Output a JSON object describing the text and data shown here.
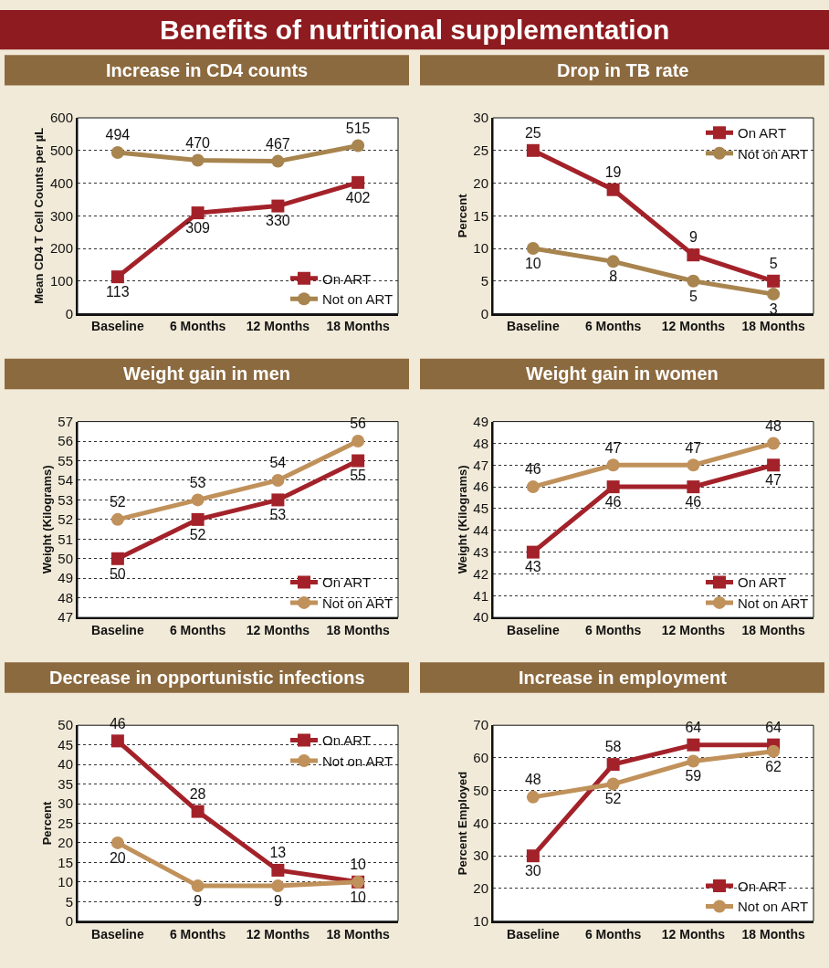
{
  "chart_data": [
    {
      "type": "line",
      "title": "Increase in CD4 counts",
      "annotations": [
        "Benefits of nutritional supplementation"
      ],
      "ylabel": "Mean CD4 T Cell Counts per µL",
      "categories": [
        "Baseline",
        "6 Months",
        "12 Months",
        "18 Months"
      ],
      "ylim": [
        0,
        600
      ],
      "yticks": [
        0,
        100,
        200,
        300,
        400,
        500,
        600
      ],
      "grid": "y",
      "legend": "bottom right",
      "data_labels": true,
      "series": [
        {
          "name": "On ART",
          "color": "#a3222a",
          "marker": "square",
          "values": [
            113,
            309,
            330,
            402
          ]
        },
        {
          "name": "Not on ART",
          "color": "#a8844e",
          "marker": "circle",
          "values": [
            494,
            470,
            467,
            515
          ]
        }
      ]
    },
    {
      "type": "line",
      "title": "Drop in TB rate",
      "ylabel": "Percent",
      "categories": [
        "Baseline",
        "6 Months",
        "12 Months",
        "18 Months"
      ],
      "ylim": [
        0,
        30
      ],
      "yticks": [
        0,
        5,
        10,
        15,
        20,
        25,
        30
      ],
      "grid": "y",
      "legend": "top right",
      "data_labels": true,
      "series": [
        {
          "name": "On ART",
          "color": "#a3222a",
          "marker": "square",
          "values": [
            25,
            19,
            9,
            5
          ]
        },
        {
          "name": "Not on ART",
          "color": "#a8844e",
          "marker": "circle",
          "values": [
            10,
            8,
            5,
            3
          ]
        }
      ]
    },
    {
      "type": "line",
      "title": "Weight gain in men",
      "ylabel": "Weight (Kilograms)",
      "categories": [
        "Baseline",
        "6 Months",
        "12 Months",
        "18 Months"
      ],
      "ylim": [
        47,
        57
      ],
      "yticks": [
        47,
        48,
        49,
        50,
        51,
        52,
        53,
        54,
        55,
        56,
        57
      ],
      "grid": "y",
      "legend": "bottom right",
      "data_labels": true,
      "series": [
        {
          "name": "On ART",
          "color": "#a3222a",
          "marker": "square",
          "values": [
            50,
            52,
            53,
            55
          ]
        },
        {
          "name": "Not on ART",
          "color": "#c0915a",
          "marker": "circle",
          "values": [
            52,
            53,
            54,
            56
          ]
        }
      ]
    },
    {
      "type": "line",
      "title": "Weight gain in women",
      "ylabel": "Weight (Kilograms)",
      "categories": [
        "Baseline",
        "6 Months",
        "12 Months",
        "18 Months"
      ],
      "ylim": [
        40,
        49
      ],
      "yticks": [
        40,
        41,
        42,
        43,
        44,
        45,
        46,
        47,
        48,
        49
      ],
      "grid": "y",
      "legend": "bottom right",
      "data_labels": true,
      "series": [
        {
          "name": "On ART",
          "color": "#a3222a",
          "marker": "square",
          "values": [
            43,
            46,
            46,
            47
          ]
        },
        {
          "name": "Not on ART",
          "color": "#c0915a",
          "marker": "circle",
          "values": [
            46,
            47,
            47,
            48
          ]
        }
      ]
    },
    {
      "type": "line",
      "title": "Decrease in opportunistic infections",
      "ylabel": "Percent",
      "categories": [
        "Baseline",
        "6 Months",
        "12 Months",
        "18 Months"
      ],
      "ylim": [
        0,
        50
      ],
      "yticks": [
        0,
        5,
        10,
        15,
        20,
        25,
        30,
        35,
        40,
        45,
        50
      ],
      "grid": "y",
      "legend": "top right",
      "data_labels": true,
      "series": [
        {
          "name": "On ART",
          "color": "#a3222a",
          "marker": "square",
          "values": [
            46,
            28,
            13,
            10
          ]
        },
        {
          "name": "Not on ART",
          "color": "#c0915a",
          "marker": "circle",
          "values": [
            20,
            9,
            9,
            10
          ]
        }
      ]
    },
    {
      "type": "line",
      "title": "Increase in employment",
      "ylabel": "Percent Employed",
      "categories": [
        "Baseline",
        "6 Months",
        "12 Months",
        "18 Months"
      ],
      "ylim": [
        10,
        70
      ],
      "yticks": [
        10,
        20,
        30,
        40,
        50,
        60,
        70
      ],
      "grid": "y",
      "legend": "bottom right",
      "data_labels": true,
      "series": [
        {
          "name": "On ART",
          "color": "#a3222a",
          "marker": "square",
          "values": [
            30,
            58,
            64,
            64
          ]
        },
        {
          "name": "Not on ART",
          "color": "#c0915a",
          "marker": "circle",
          "values": [
            48,
            52,
            59,
            62
          ]
        }
      ]
    }
  ]
}
